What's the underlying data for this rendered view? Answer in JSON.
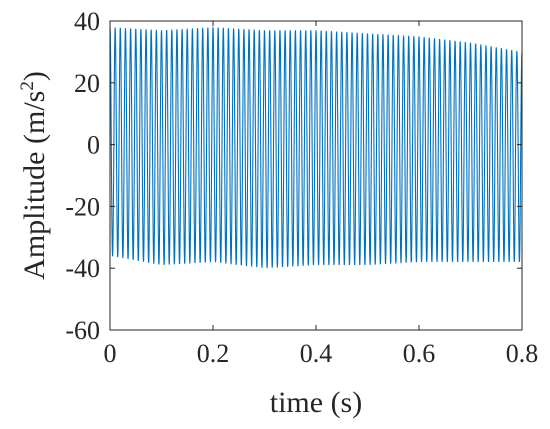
{
  "chart_data": {
    "type": "line",
    "title": "",
    "xlabel": "time (s)",
    "ylabel": {
      "main": "Amplitude (m/s",
      "superscript": "2",
      "close": ")"
    },
    "xlim": [
      0,
      0.8
    ],
    "ylim": [
      -60,
      40
    ],
    "x_ticks": [
      0,
      0.2,
      0.4,
      0.6,
      0.8
    ],
    "x_tick_labels": [
      "0",
      "0.2",
      "0.4",
      "0.6",
      "0.8"
    ],
    "y_ticks": [
      -60,
      -40,
      -20,
      0,
      20,
      40
    ],
    "y_tick_labels": [
      "-60",
      "-40",
      "-20",
      "0",
      "20",
      "40"
    ],
    "grid": false,
    "legend": "none",
    "series": [
      {
        "color": "#0072BD",
        "signal": {
          "form": "sinusoid",
          "cycles_per_second": 100,
          "x_start": 0,
          "x_end": 0.8,
          "positive_peaks": [
            [
              0.0,
              38
            ],
            [
              0.1,
              37
            ],
            [
              0.2,
              38
            ],
            [
              0.3,
              37
            ],
            [
              0.4,
              37
            ],
            [
              0.5,
              36
            ],
            [
              0.6,
              35
            ],
            [
              0.7,
              33
            ],
            [
              0.8,
              30
            ]
          ],
          "negative_peaks": [
            [
              0.0,
              -36
            ],
            [
              0.1,
              -39
            ],
            [
              0.2,
              -38
            ],
            [
              0.3,
              -40
            ],
            [
              0.4,
              -39
            ],
            [
              0.5,
              -39
            ],
            [
              0.6,
              -38
            ],
            [
              0.7,
              -38
            ],
            [
              0.8,
              -38
            ]
          ]
        }
      }
    ]
  }
}
